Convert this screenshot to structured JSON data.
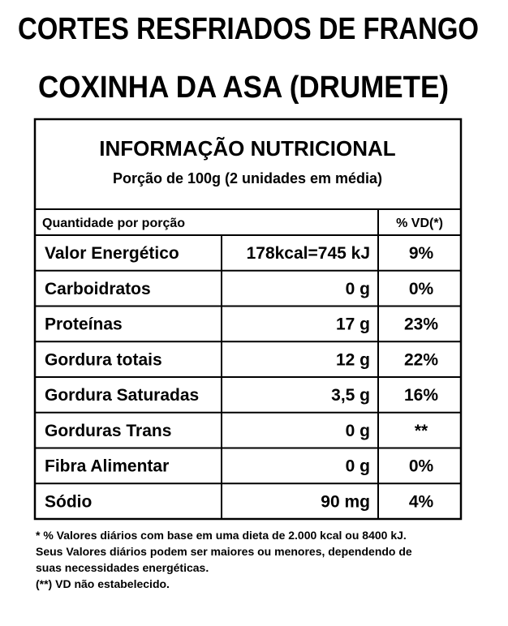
{
  "header": {
    "title_lines": [
      "CORTES RESFRIADOS DE FRANGO",
      "COXINHA DA ASA (DRUMETE)"
    ]
  },
  "table": {
    "title": "INFORMAÇÃO NUTRICIONAL",
    "portion": "Porção de 100g (2 unidades em média)",
    "columns": [
      "Quantidade por porção",
      "% VD(*)"
    ],
    "rows": [
      [
        "Valor Energético",
        "178kcal=745 kJ",
        "9%"
      ],
      [
        "Carboidratos",
        "0 g",
        "0%"
      ],
      [
        "Proteínas",
        "17 g",
        "23%"
      ],
      [
        "Gordura totais",
        "12 g",
        "22%"
      ],
      [
        "Gordura Saturadas",
        "3,5 g",
        "16%"
      ],
      [
        "Gorduras Trans",
        "0 g",
        "**"
      ],
      [
        "Fibra Alimentar",
        "0 g",
        "0%"
      ],
      [
        "Sódio",
        "90 mg",
        "4%"
      ]
    ]
  },
  "footnotes": [
    "* % Valores diários com base em uma dieta de 2.000 kcal ou 8400 kJ.",
    "Seus Valores diários podem ser maiores ou menores, dependendo de",
    "suas necessidades energéticas.",
    "(**) VD não estabelecido."
  ]
}
